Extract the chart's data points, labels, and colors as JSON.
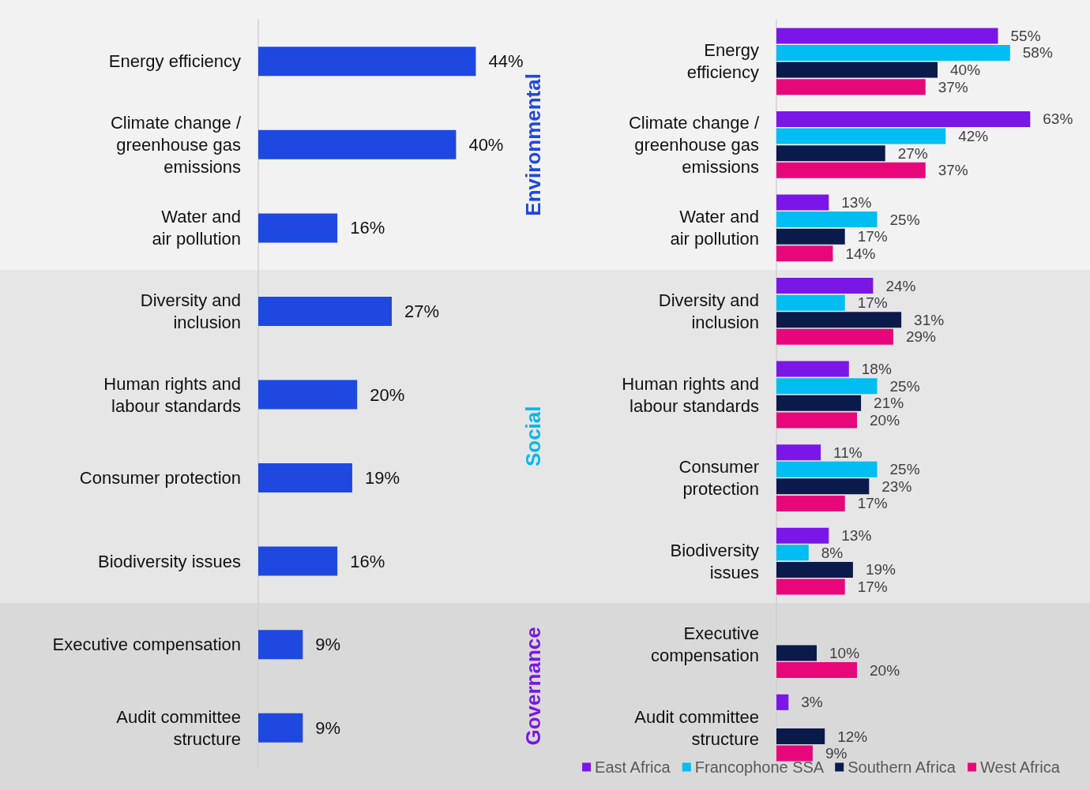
{
  "chart_data": [
    {
      "type": "bar",
      "orientation": "horizontal",
      "categories": [
        "Energy efficiency",
        "Climate change /\ngreenhouse gas\nemissions",
        "Water and\nair pollution",
        "Diversity and\ninclusion",
        "Human rights and\nlabour standards",
        "Consumer protection",
        "Biodiversity issues",
        "Executive compensation",
        "Audit committee\nstructure"
      ],
      "values": [
        44,
        40,
        16,
        27,
        20,
        19,
        16,
        9,
        9
      ],
      "color": "#1e48e0",
      "value_labels": [
        "44%",
        "40%",
        "16%",
        "27%",
        "20%",
        "19%",
        "16%",
        "9%",
        "9%"
      ],
      "bands": [
        {
          "axis": "y",
          "from": "Energy efficiency",
          "to": "Water and\nair pollution",
          "label": "Environmental",
          "color": "#f2f2f2"
        },
        {
          "axis": "y",
          "from": "Diversity and\ninclusion",
          "to": "Biodiversity issues",
          "label": "Social",
          "color": "#e6e6e6"
        },
        {
          "axis": "y",
          "from": "Executive compensation",
          "to": "Audit committee\nstructure",
          "label": "Governance",
          "color": "#d9d9d9"
        }
      ]
    },
    {
      "type": "bar",
      "orientation": "horizontal",
      "categories": [
        "Energy\nefficiency",
        "Climate change /\ngreenhouse gas\nemissions",
        "Water and\nair pollution",
        "Diversity and\ninclusion",
        "Human rights and\nlabour standards",
        "Consumer\nprotection",
        "Biodiversity\nissues",
        "Executive\ncompensation",
        "Audit committee\nstructure"
      ],
      "series": [
        {
          "name": "East Africa",
          "color": "#7a16e8",
          "values": [
            55,
            63,
            13,
            24,
            18,
            11,
            13,
            null,
            3
          ],
          "value_labels": [
            "55%",
            "63%",
            "13%",
            "24%",
            "18%",
            "11%",
            "13%",
            null,
            "3%"
          ]
        },
        {
          "name": "Francophone SSA",
          "color": "#00bdf2",
          "values": [
            58,
            42,
            25,
            17,
            25,
            25,
            8,
            null,
            null
          ],
          "value_labels": [
            "58%",
            "42%",
            "25%",
            "17%",
            "25%",
            "25%",
            "8%",
            null,
            null
          ]
        },
        {
          "name": "Southern Africa",
          "color": "#0a1a4a",
          "values": [
            40,
            27,
            17,
            31,
            21,
            23,
            19,
            10,
            12
          ],
          "value_labels": [
            "40%",
            "27%",
            "17%",
            "31%",
            "21%",
            "23%",
            "19%",
            "10%",
            "12%"
          ]
        },
        {
          "name": "West Africa",
          "color": "#e8077a",
          "values": [
            37,
            37,
            14,
            29,
            20,
            17,
            17,
            20,
            9
          ],
          "value_labels": [
            "37%",
            "37%",
            "14%",
            "29%",
            "20%",
            "17%",
            "17%",
            "20%",
            "9%"
          ]
        }
      ],
      "bands": [
        {
          "axis": "y",
          "from": "Energy\nefficiency",
          "to": "Water and\nair pollution",
          "color": "#f2f2f2"
        },
        {
          "axis": "y",
          "from": "Diversity and\ninclusion",
          "to": "Biodiversity\nissues",
          "color": "#e6e6e6"
        },
        {
          "axis": "y",
          "from": "Executive\ncompensation",
          "to": "Audit committee\nstructure",
          "color": "#d9d9d9"
        }
      ],
      "legend": "bottom"
    }
  ]
}
